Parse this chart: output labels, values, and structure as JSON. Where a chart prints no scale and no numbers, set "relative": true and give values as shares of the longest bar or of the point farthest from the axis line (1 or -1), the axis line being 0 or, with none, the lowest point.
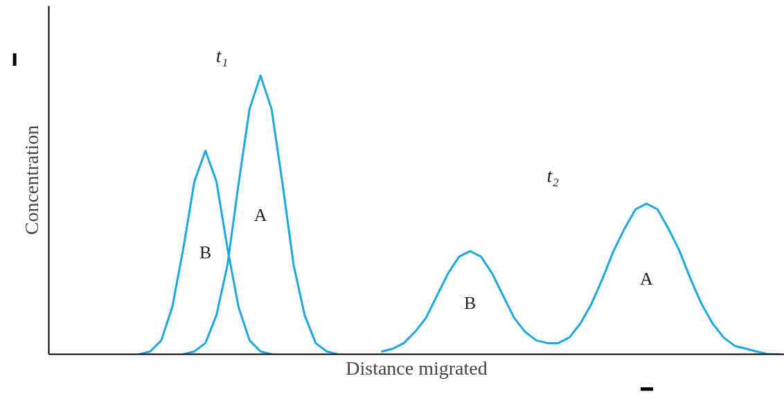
{
  "chart_data": {
    "type": "line",
    "relative": true,
    "xlabel": "Distance migrated",
    "ylabel": "Concentration",
    "annotations": [
      "t₁",
      "t₂"
    ],
    "categories": [
      null,
      null,
      null,
      null,
      null,
      null,
      null,
      null,
      null,
      null,
      null,
      null,
      null,
      null,
      null,
      null,
      null,
      null,
      null,
      null,
      null,
      null,
      null,
      null,
      null,
      null,
      null,
      null,
      null,
      null,
      null,
      null,
      null,
      null,
      null,
      null,
      null,
      null,
      null,
      null,
      null,
      null,
      null,
      null,
      null,
      null,
      null,
      null,
      null,
      null,
      null,
      null,
      null,
      null,
      null,
      null,
      null,
      null,
      null,
      null,
      null,
      null,
      null,
      null,
      null,
      null,
      null
    ],
    "series": [
      {
        "name": "B",
        "color": "#1ea8e0",
        "values": [
          null,
          null,
          null,
          null,
          null,
          null,
          null,
          null,
          0.0,
          0.01,
          0.05,
          0.17,
          0.38,
          0.62,
          0.73,
          0.62,
          0.38,
          0.17,
          0.05,
          0.01,
          0.0,
          null,
          null,
          null,
          null,
          null,
          null,
          null,
          null,
          null,
          null,
          null,
          null,
          null,
          null,
          null,
          null,
          null,
          null,
          null,
          null,
          null,
          null,
          null,
          null,
          null,
          null,
          null,
          null,
          null,
          null,
          null,
          null,
          null,
          null,
          null,
          null,
          null,
          null,
          null,
          null,
          null,
          null,
          null,
          null,
          null,
          null
        ]
      },
      {
        "name": "A",
        "color": "#1ea8e0",
        "values": [
          null,
          null,
          null,
          null,
          null,
          null,
          null,
          null,
          null,
          null,
          null,
          null,
          0.0,
          0.01,
          0.04,
          0.14,
          0.32,
          0.61,
          0.88,
          1.0,
          0.88,
          0.61,
          0.32,
          0.14,
          0.04,
          0.01,
          0.0,
          null,
          null,
          null,
          null,
          null,
          null,
          null,
          null,
          null,
          null,
          null,
          null,
          null,
          null,
          null,
          null,
          null,
          null,
          null,
          null,
          null,
          null,
          null,
          null,
          null,
          null,
          null,
          null,
          null,
          null,
          null,
          null,
          null,
          null,
          null,
          null,
          null,
          null,
          null,
          null
        ]
      },
      {
        "name": "B",
        "color": "#1ea8e0",
        "values": [
          null,
          null,
          null,
          null,
          null,
          null,
          null,
          null,
          null,
          null,
          null,
          null,
          null,
          null,
          null,
          null,
          null,
          null,
          null,
          null,
          null,
          null,
          null,
          null,
          null,
          null,
          null,
          null,
          null,
          null,
          0.01,
          0.02,
          0.04,
          0.08,
          0.13,
          0.21,
          0.29,
          0.35,
          0.37,
          0.35,
          0.29,
          0.21,
          0.13,
          0.08,
          0.05,
          0.04,
          0.04,
          null,
          null,
          null,
          null,
          null,
          null,
          null,
          null,
          null,
          null,
          null,
          null,
          null,
          null,
          null,
          null,
          null,
          null,
          null,
          null
        ]
      },
      {
        "name": "A",
        "color": "#1ea8e0",
        "values": [
          null,
          null,
          null,
          null,
          null,
          null,
          null,
          null,
          null,
          null,
          null,
          null,
          null,
          null,
          null,
          null,
          null,
          null,
          null,
          null,
          null,
          null,
          null,
          null,
          null,
          null,
          null,
          null,
          null,
          null,
          null,
          null,
          null,
          null,
          null,
          null,
          null,
          null,
          null,
          null,
          null,
          null,
          null,
          null,
          null,
          null,
          0.04,
          0.06,
          0.11,
          0.18,
          0.27,
          0.37,
          0.45,
          0.52,
          0.54,
          0.52,
          0.45,
          0.37,
          0.27,
          0.18,
          0.11,
          0.06,
          0.03,
          0.02,
          0.01,
          0.0,
          0.0
        ]
      }
    ]
  }
}
